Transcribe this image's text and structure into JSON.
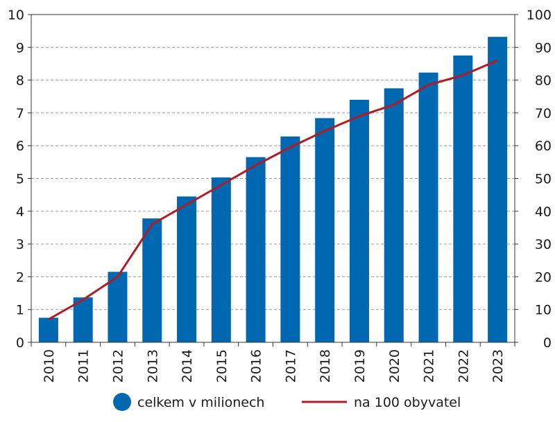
{
  "chart_data": {
    "type": "bar",
    "categories": [
      "2010",
      "2011",
      "2012",
      "2013",
      "2014",
      "2015",
      "2016",
      "2017",
      "2018",
      "2019",
      "2020",
      "2021",
      "2022",
      "2023"
    ],
    "series": [
      {
        "name": "celkem v milionech",
        "type": "bar",
        "axis": "left",
        "color": "#0067b1",
        "values": [
          0.75,
          1.37,
          2.15,
          3.78,
          4.45,
          5.03,
          5.65,
          6.28,
          6.84,
          7.4,
          7.75,
          8.23,
          8.75,
          9.32
        ]
      },
      {
        "name": "na 100 obyvatel",
        "type": "line",
        "axis": "right",
        "color": "#b01c24",
        "values": [
          7,
          13,
          20,
          36,
          42,
          48,
          54,
          59.5,
          64.5,
          69,
          72.5,
          78.5,
          81.5,
          86
        ]
      }
    ],
    "ylim_left": [
      0,
      10
    ],
    "ylim_right": [
      0,
      100
    ],
    "yticks_left": [
      "0",
      "1",
      "2",
      "3",
      "4",
      "5",
      "6",
      "7",
      "8",
      "9",
      "10"
    ],
    "yticks_right": [
      "0",
      "10",
      "20",
      "30",
      "40",
      "50",
      "60",
      "70",
      "80",
      "90",
      "100"
    ],
    "grid": "horizontal dashed",
    "legend_position": "bottom",
    "title": "",
    "xlabel": "",
    "ylabel": ""
  }
}
